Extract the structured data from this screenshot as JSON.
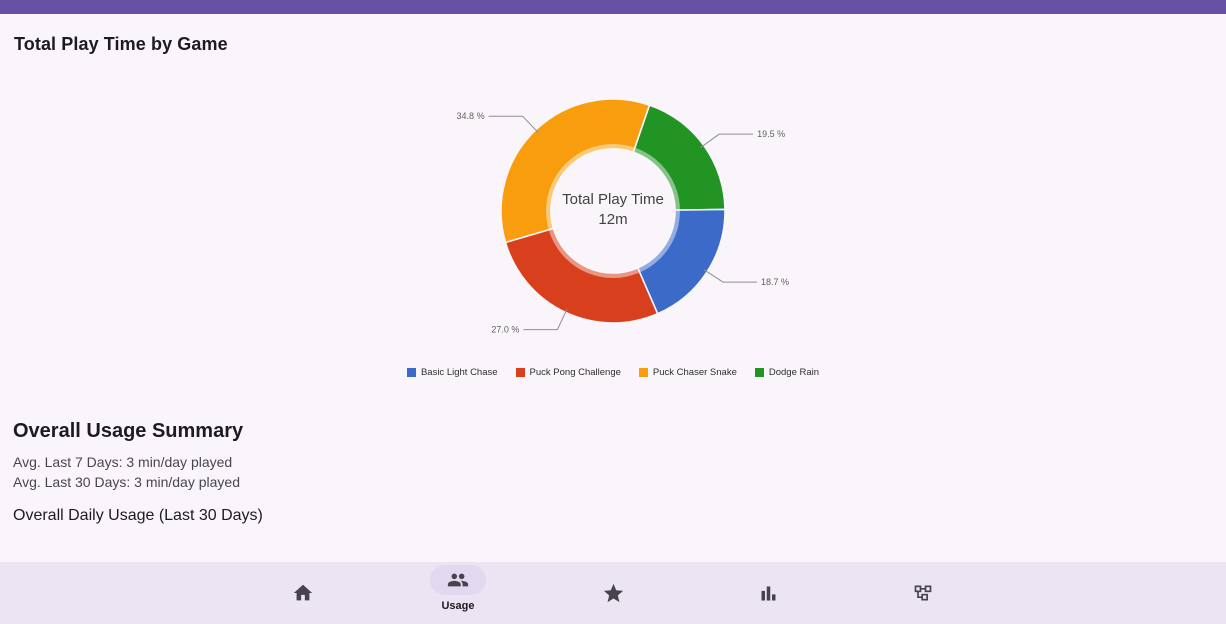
{
  "app": {
    "top_bar": true
  },
  "header": {
    "title": "Total Play Time by Game"
  },
  "chart_data": {
    "type": "pie",
    "subtype": "donut",
    "title": "Total Play Time by Game",
    "center_label": "Total Play Time",
    "center_value": "12m",
    "series": [
      {
        "name": "Basic Light Chase",
        "value": 18.7,
        "color": "#3C6AC9"
      },
      {
        "name": "Puck Pong Challenge",
        "value": 27.0,
        "color": "#D8401D"
      },
      {
        "name": "Puck Chaser Snake",
        "value": 34.8,
        "color": "#F89D0D"
      },
      {
        "name": "Dodge Rain",
        "value": 19.5,
        "color": "#219423"
      }
    ],
    "draw_order": [
      3,
      0,
      1,
      2
    ],
    "start_angle_deg": 19,
    "label_format": "{value} %",
    "legend_position": "bottom",
    "legend_shape": "square"
  },
  "summary": {
    "heading": "Overall Usage Summary",
    "lines": [
      "Avg. Last 7 Days: 3 min/day played",
      "Avg. Last 30 Days: 3 min/day played"
    ],
    "subheading": "Overall Daily Usage (Last 30 Days)"
  },
  "nav": {
    "items": [
      {
        "icon": "home-icon",
        "active": false
      },
      {
        "icon": "group-icon",
        "active": true,
        "label": "Usage"
      },
      {
        "icon": "star-icon",
        "active": false
      },
      {
        "icon": "bar-chart-icon",
        "active": false
      },
      {
        "icon": "schema-icon",
        "active": false
      }
    ]
  },
  "colors": {
    "top_bar": "#6650A4",
    "background": "#FAF5FB",
    "nav_bar": "#EAE4F3",
    "nav_active_pill": "#E2D9F0",
    "icon": "#47434E",
    "text_primary": "#1D1B20",
    "text_secondary": "#49454F",
    "chart_label": "#616161",
    "leader_line": "#8F8F8F"
  }
}
